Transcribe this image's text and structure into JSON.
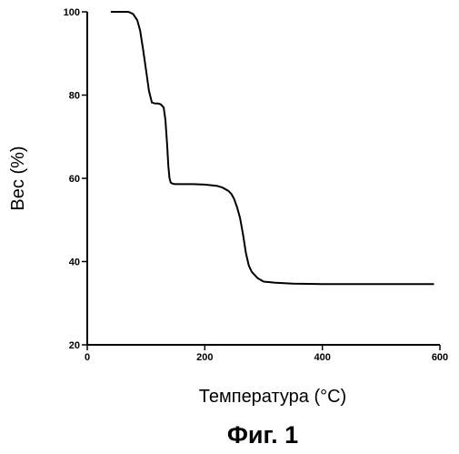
{
  "chart_data": {
    "type": "line",
    "title": "",
    "xlabel": "Температура (°C)",
    "ylabel": "Вес (%)",
    "caption": "Фиг. 1",
    "xlim": [
      0,
      600
    ],
    "ylim": [
      20,
      100
    ],
    "x_ticks": [
      0,
      200,
      400,
      600
    ],
    "x_tick_labels": [
      "0",
      "200",
      "400",
      "600"
    ],
    "y_ticks": [
      20,
      40,
      60,
      80,
      100
    ],
    "y_tick_labels": [
      "20",
      "40",
      "60",
      "80",
      "100"
    ],
    "grid": false,
    "legend": "none",
    "line_color": "#000000",
    "series": [
      {
        "x": [
          40,
          60,
          70,
          78,
          85,
          90,
          95,
          100,
          105,
          110,
          115,
          120,
          125,
          130,
          133,
          136,
          138,
          140,
          142,
          145,
          150,
          160,
          180,
          200,
          220,
          230,
          240,
          245,
          250,
          255,
          260,
          265,
          270,
          275,
          280,
          290,
          300,
          320,
          350,
          400,
          450,
          500,
          550,
          590
        ],
        "y": [
          100,
          100,
          100,
          99.5,
          98,
          95.5,
          91,
          86,
          81,
          78.2,
          78,
          78,
          77.8,
          77,
          74,
          68,
          63,
          60,
          59,
          58.7,
          58.6,
          58.6,
          58.6,
          58.5,
          58.2,
          57.8,
          57,
          56.3,
          55,
          53,
          50.5,
          46.5,
          42,
          39,
          37.5,
          36,
          35.2,
          34.9,
          34.7,
          34.6,
          34.6,
          34.6,
          34.6,
          34.6
        ]
      }
    ]
  }
}
